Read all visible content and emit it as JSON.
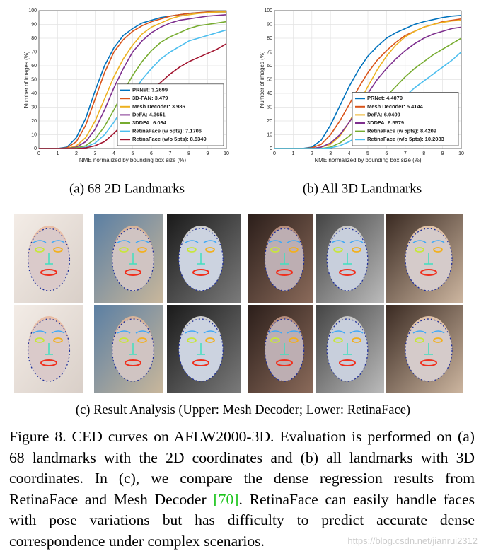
{
  "chart_data": [
    {
      "type": "line",
      "caption": "(a)  68 2D Landmarks",
      "x_label": "NME normalized by bounding box size (%)",
      "y_label": "Number of images (%)",
      "x": [
        0,
        0.5,
        1,
        1.5,
        2,
        2.5,
        3,
        3.5,
        4,
        4.5,
        5,
        5.5,
        6,
        6.5,
        7,
        7.5,
        8,
        8.5,
        9,
        9.5,
        10
      ],
      "xlim": [
        0,
        10
      ],
      "xticks": [
        0,
        1,
        2,
        3,
        4,
        5,
        6,
        7,
        8,
        9,
        10
      ],
      "ylim": [
        0,
        100
      ],
      "yticks": [
        0,
        10,
        20,
        30,
        40,
        50,
        60,
        70,
        80,
        90,
        100
      ],
      "grid": true,
      "legend": "lower right",
      "series": [
        {
          "name": "PRNet: 3.2699",
          "color": "#0072bd",
          "values": [
            0,
            0,
            0,
            1,
            8,
            22,
            42,
            60,
            73,
            82,
            87,
            91,
            93,
            95,
            96,
            97,
            98,
            98.5,
            99,
            99,
            99
          ]
        },
        {
          "name": "3D-FAN: 3.479",
          "color": "#d95319",
          "values": [
            0,
            0,
            0,
            0.5,
            5,
            17,
            36,
            55,
            70,
            79,
            85,
            89,
            92,
            94,
            96,
            97,
            98,
            98.5,
            99,
            99,
            99.5
          ]
        },
        {
          "name": "Mesh Decoder: 3.986",
          "color": "#edb120",
          "values": [
            0,
            0,
            0,
            0,
            2,
            8,
            20,
            36,
            52,
            65,
            75,
            83,
            88,
            91,
            94,
            96,
            97,
            98,
            98.5,
            99,
            99
          ]
        },
        {
          "name": "DeFA: 4.3651",
          "color": "#7e2f8e",
          "values": [
            0,
            0,
            0,
            0,
            1,
            5,
            14,
            28,
            44,
            58,
            70,
            78,
            84,
            88,
            91,
            93,
            94,
            95,
            96,
            96.5,
            97
          ]
        },
        {
          "name": "3DDFA: 6.034",
          "color": "#77ac30",
          "values": [
            0,
            0,
            0,
            0,
            0.5,
            2,
            7,
            16,
            28,
            41,
            53,
            63,
            71,
            77,
            81,
            84,
            87,
            89,
            90,
            91,
            92
          ]
        },
        {
          "name": "RetinaFace (w 5pts): 7.1706",
          "color": "#4dbeee",
          "values": [
            0,
            0,
            0,
            0,
            0,
            1,
            4,
            10,
            19,
            30,
            40,
            50,
            58,
            65,
            70,
            74,
            78,
            80,
            82,
            84,
            86
          ]
        },
        {
          "name": "RetinaFace (w/o 5pts): 8.5349",
          "color": "#a2142f",
          "values": [
            0,
            0,
            0,
            0,
            0,
            0.5,
            2,
            5,
            11,
            18,
            26,
            34,
            42,
            48,
            54,
            59,
            63,
            66,
            69,
            72,
            76
          ]
        }
      ]
    },
    {
      "type": "line",
      "caption": "(b)  All 3D Landmarks",
      "x_label": "NME normalized by bounding box size (%)",
      "y_label": "Number of images (%)",
      "x": [
        0,
        0.5,
        1,
        1.5,
        2,
        2.5,
        3,
        3.5,
        4,
        4.5,
        5,
        5.5,
        6,
        6.5,
        7,
        7.5,
        8,
        8.5,
        9,
        9.5,
        10
      ],
      "xlim": [
        0,
        10
      ],
      "xticks": [
        0,
        1,
        2,
        3,
        4,
        5,
        6,
        7,
        8,
        9,
        10
      ],
      "ylim": [
        0,
        100
      ],
      "yticks": [
        0,
        10,
        20,
        30,
        40,
        50,
        60,
        70,
        80,
        90,
        100
      ],
      "grid": true,
      "legend": "lower right",
      "series": [
        {
          "name": "PRNet: 4.4079",
          "color": "#0072bd",
          "values": [
            0,
            0,
            0,
            0,
            1,
            6,
            17,
            31,
            45,
            57,
            67,
            74,
            80,
            84,
            87,
            90,
            92,
            93.5,
            95,
            96,
            96.5
          ]
        },
        {
          "name": "Mesh Decoder: 5.4144",
          "color": "#d95319",
          "values": [
            0,
            0,
            0,
            0,
            0.5,
            3,
            10,
            20,
            32,
            44,
            55,
            64,
            71,
            77,
            82,
            85,
            88,
            90,
            92,
            93,
            94
          ]
        },
        {
          "name": "DeFA: 6.0409",
          "color": "#edb120",
          "values": [
            0,
            0,
            0,
            0,
            0,
            1,
            3,
            9,
            19,
            32,
            45,
            57,
            67,
            75,
            81,
            85,
            88,
            90,
            91.5,
            92.5,
            93
          ]
        },
        {
          "name": "3DDFA: 6.5579",
          "color": "#7e2f8e",
          "values": [
            0,
            0,
            0,
            0,
            0,
            1,
            4,
            10,
            19,
            29,
            40,
            50,
            58,
            65,
            71,
            76,
            80,
            83,
            85,
            87,
            88
          ]
        },
        {
          "name": "RetinaFace (w 5pts): 8.4209",
          "color": "#77ac30",
          "values": [
            0,
            0,
            0,
            0,
            0,
            0,
            1,
            4,
            9,
            15,
            22,
            30,
            38,
            45,
            52,
            58,
            63,
            68,
            72,
            76,
            80
          ]
        },
        {
          "name": "RetinaFace (w/o 5pts): 10.2083",
          "color": "#4dbeee",
          "values": [
            0,
            0,
            0,
            0,
            0,
            0,
            0.5,
            2,
            5,
            9,
            14,
            20,
            26,
            32,
            38,
            44,
            49,
            54,
            59,
            64,
            70
          ]
        }
      ]
    }
  ],
  "subcaption_c": "(c)  Result Analysis (Upper: Mesh Decoder; Lower: RetinaFace)",
  "caption": {
    "before": "Figure 8. CED curves on AFLW2000-3D. Evaluation is performed on (a) 68 landmarks with the 2D coordinates and (b) all landmarks with 3D coordinates. In (c), we compare the dense regression results from RetinaFace and Mesh Decoder ",
    "ref": "[70]",
    "after": ". RetinaFace can easily handle faces with pose variations but has difficulty to predict accurate dense correspondence under complex scenarios."
  },
  "watermark": "https://blog.csdn.net/jianrui2312"
}
